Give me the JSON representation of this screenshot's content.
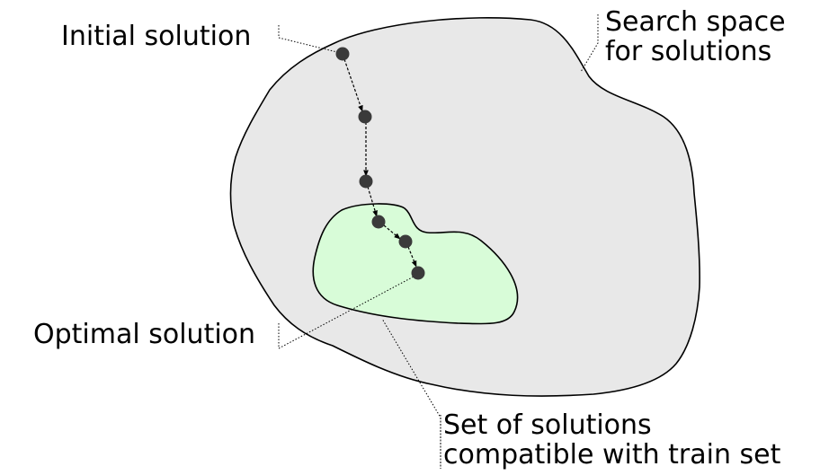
{
  "labels": {
    "initial_solution": "Initial solution",
    "optimal_solution": "Optimal solution",
    "search_space": [
      "Search space",
      "for solutions"
    ],
    "compatible_set": [
      "Set of solutions",
      "compatible with train set"
    ]
  },
  "colors": {
    "search_space_fill": "#e8e8e8",
    "compatible_region_fill": "#d8fcd8",
    "point_fill": "#3a3a3a",
    "outline": "#000000"
  },
  "path_points": 6
}
